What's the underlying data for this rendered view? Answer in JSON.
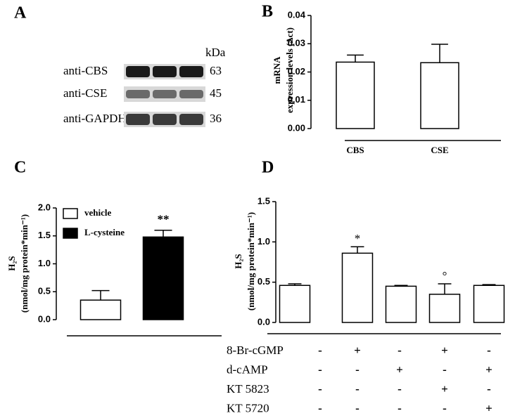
{
  "blot": {
    "panel": "A",
    "unit": "kDa",
    "rows": [
      {
        "label": "anti-CBS",
        "kda": "63"
      },
      {
        "label": "anti-CSE",
        "kda": "45"
      },
      {
        "label": "anti-GAPDH",
        "kda": "36"
      }
    ]
  },
  "chart_data": [
    {
      "type": "bar",
      "panel": "B",
      "ylabel": [
        "mRNA",
        "expression levels (Δct)"
      ],
      "categories": [
        "CBS",
        "CSE"
      ],
      "values": [
        0.0235,
        0.0233
      ],
      "errors": [
        0.0025,
        0.0065
      ],
      "color": "#ffffff",
      "ylim": [
        0,
        0.04
      ],
      "yticks": [
        {
          "value": 0,
          "label": "0.00"
        },
        {
          "value": 0.01,
          "label": "0.01"
        },
        {
          "value": 0.02,
          "label": "0.02"
        },
        {
          "value": 0.03,
          "label": "0.03"
        },
        {
          "value": 0.04,
          "label": "0.04"
        }
      ]
    },
    {
      "type": "bar",
      "panel": "C",
      "ylabel": [
        "H₂S",
        "(nmol/mg protein*min⁻¹)"
      ],
      "series": [
        {
          "name": "vehicle",
          "color": "#ffffff",
          "values": [
            0.35
          ],
          "errors": [
            0.17
          ]
        },
        {
          "name": "L-cysteine",
          "color": "#000000",
          "values": [
            1.48
          ],
          "errors": [
            0.12
          ],
          "annotation": "**"
        }
      ],
      "legend": "upper left",
      "ylim": [
        0,
        2
      ],
      "yticks": [
        {
          "value": 0,
          "label": "0.0"
        },
        {
          "value": 0.5,
          "label": "0.5"
        },
        {
          "value": 1,
          "label": "1.0"
        },
        {
          "value": 1.5,
          "label": "1.5"
        },
        {
          "value": 2,
          "label": "2.0"
        }
      ]
    },
    {
      "type": "bar",
      "panel": "D",
      "ylabel": [
        "H₂S",
        "(nmol/mg protein*min⁻¹)"
      ],
      "values": [
        0.46,
        0.86,
        0.45,
        0.35,
        0.46
      ],
      "errors": [
        0.02,
        0.08,
        0.01,
        0.13,
        0.01
      ],
      "color": "#ffffff",
      "annotations": [
        null,
        "*",
        null,
        "°",
        null
      ],
      "ylim": [
        0,
        1.5
      ],
      "yticks": [
        {
          "value": 0,
          "label": "0.0"
        },
        {
          "value": 0.5,
          "label": "0.5"
        },
        {
          "value": 1,
          "label": "1.0"
        },
        {
          "value": 1.5,
          "label": "1.5"
        }
      ],
      "treatments": [
        {
          "name": "8-Br-cGMP",
          "marks": [
            "-",
            "+",
            "-",
            "+",
            "-"
          ]
        },
        {
          "name": "d-cAMP",
          "marks": [
            "-",
            "-",
            "+",
            "-",
            "+"
          ]
        },
        {
          "name": "KT 5823",
          "marks": [
            "-",
            "-",
            "-",
            "+",
            "-"
          ]
        },
        {
          "name": "KT 5720",
          "marks": [
            "-",
            "-",
            "-",
            "-",
            "+"
          ]
        }
      ]
    }
  ]
}
